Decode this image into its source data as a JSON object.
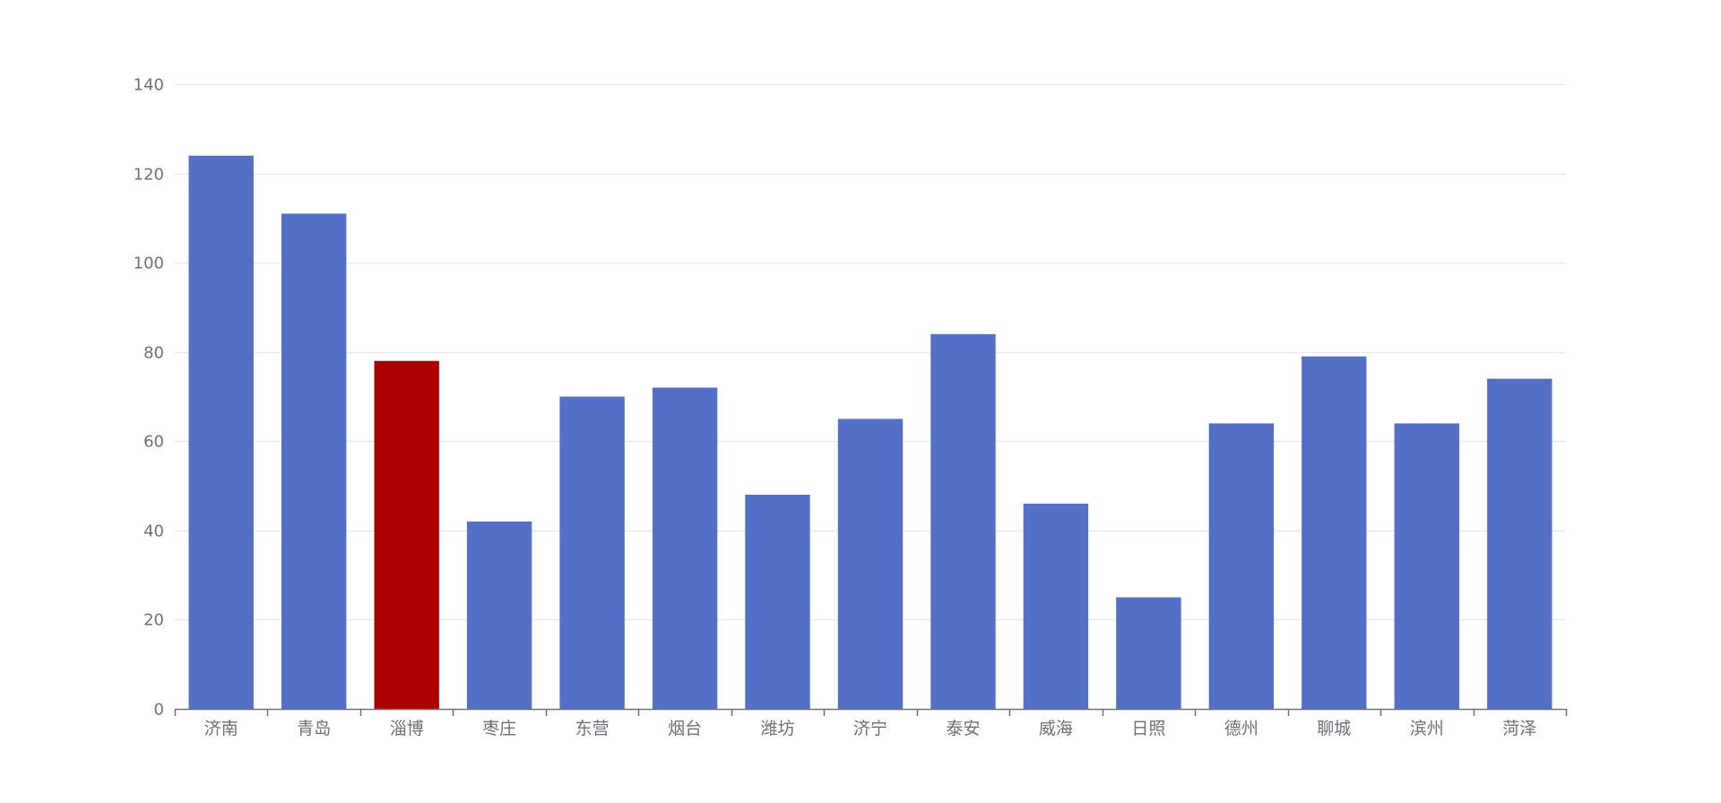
{
  "chart_data": {
    "type": "bar",
    "categories": [
      "济南",
      "青岛",
      "淄博",
      "枣庄",
      "东营",
      "烟台",
      "潍坊",
      "济宁",
      "泰安",
      "威海",
      "日照",
      "德州",
      "聊城",
      "滨州",
      "菏泽"
    ],
    "values": [
      124,
      111,
      78,
      42,
      70,
      72,
      48,
      65,
      84,
      46,
      25,
      64,
      79,
      64,
      74
    ],
    "highlight_category": "淄博",
    "ylim": [
      0,
      140
    ],
    "yticks": [
      0,
      20,
      40,
      60,
      80,
      100,
      120,
      140
    ],
    "grid": true,
    "colors": {
      "bar": "#5470c6",
      "highlight": "#aa0000",
      "grid": "#e6e9f4",
      "axis": "#6e7079",
      "label": "#6e7079"
    }
  }
}
